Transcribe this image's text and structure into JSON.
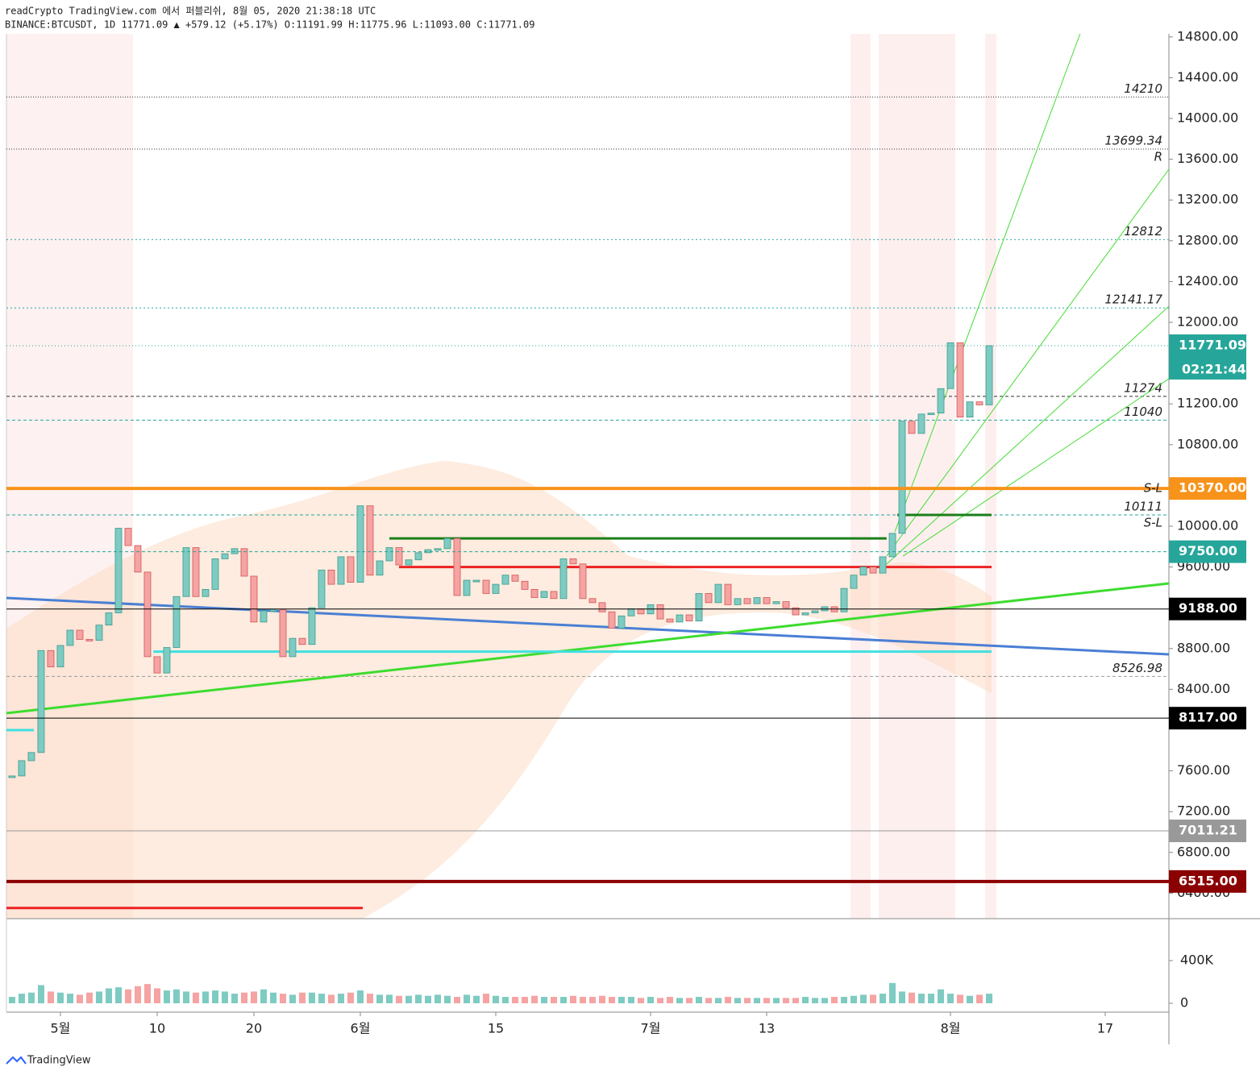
{
  "header": {
    "line1": "readCrypto TradingView.com 에서 퍼블리쉬, 8월 05, 2020 21:38:18 UTC",
    "line2": "BINANCE:BTCUSDT, 1D 11771.09 ▲ +579.12 (+5.17%) O:11191.99 H:11775.96 L:11093.00 C:11771.09"
  },
  "footer": "TradingView",
  "chart_data": {
    "type": "candlestick",
    "xlim": [
      -5.58,
      114.58
    ],
    "ylim": [
      6150,
      14830
    ],
    "xticks": [
      {
        "value": 0,
        "label": "5월"
      },
      10,
      20,
      {
        "value": 31,
        "label": "6월"
      },
      {
        "value": 45,
        "label": "15"
      },
      {
        "value": 61,
        "label": "7월"
      },
      {
        "value": 73,
        "label": "13"
      },
      {
        "value": 92,
        "label": "8월"
      },
      {
        "value": 108,
        "label": "17"
      }
    ],
    "yticks": [
      {
        "value": 14800,
        "label": "14800.00"
      },
      {
        "value": 14400,
        "label": "14400.00"
      },
      {
        "value": 14000,
        "label": "14000.00"
      },
      {
        "value": 13600,
        "label": "13600.00"
      },
      {
        "value": 13200,
        "label": "13200.00"
      },
      {
        "value": 12800,
        "label": "12800.00"
      },
      {
        "value": 12400,
        "label": "12400.00"
      },
      {
        "value": 12000,
        "label": "12000.00"
      },
      {
        "value": 11200,
        "label": "11200.00"
      },
      {
        "value": 10800,
        "label": "10800.00"
      },
      {
        "value": 10000,
        "label": "10000.00"
      },
      {
        "value": 9600,
        "label": "9600.00"
      },
      {
        "value": 8800,
        "label": "8800.00"
      },
      {
        "value": 8400,
        "label": "8400.00"
      },
      {
        "value": 7600,
        "label": "7600.00"
      },
      {
        "value": 7200,
        "label": "7200.00"
      },
      {
        "value": 6800,
        "label": "6800.00"
      },
      {
        "value": 6400,
        "label": "6400.00"
      }
    ],
    "up_color": "#7ecbc2",
    "down_color": "#f5a3a3",
    "x": [
      -5,
      -4,
      -3,
      -2,
      -1,
      0,
      1,
      2,
      3,
      4,
      5,
      6,
      7,
      8,
      9,
      10,
      11,
      12,
      13,
      14,
      15,
      16,
      17,
      18,
      19,
      20,
      21,
      22,
      23,
      24,
      25,
      26,
      27,
      28,
      29,
      30,
      31,
      32,
      33,
      34,
      35,
      36,
      37,
      38,
      39,
      40,
      41,
      42,
      43,
      44,
      45,
      46,
      47,
      48,
      49,
      50,
      51,
      52,
      53,
      54,
      55,
      56,
      57,
      58,
      59,
      60,
      61,
      62,
      63,
      64,
      65,
      66,
      67,
      68,
      69,
      70,
      71,
      72,
      73,
      74,
      75,
      76,
      77,
      78,
      79,
      80,
      81,
      82,
      83,
      84,
      85,
      86,
      87,
      88,
      89,
      90,
      91,
      92,
      93,
      94,
      95,
      96
    ],
    "close": [
      7550,
      7700,
      7780,
      8780,
      8620,
      8830,
      8980,
      8890,
      8880,
      9030,
      9150,
      9980,
      9810,
      9550,
      8720,
      8560,
      8810,
      9310,
      9790,
      9310,
      9380,
      9680,
      9730,
      9780,
      9510,
      9060,
      9170,
      9180,
      8720,
      8900,
      8840,
      9200,
      9570,
      9430,
      9700,
      9450,
      10200,
      9520,
      9660,
      9790,
      9620,
      9670,
      9740,
      9770,
      9780,
      9880,
      9320,
      9470,
      9470,
      9340,
      9430,
      9520,
      9460,
      9380,
      9300,
      9360,
      9290,
      9680,
      9630,
      9290,
      9250,
      9160,
      9000,
      9120,
      9190,
      9140,
      9230,
      9090,
      9060,
      9130,
      9070,
      9340,
      9250,
      9430,
      9230,
      9290,
      9240,
      9300,
      9240,
      9260,
      9200,
      9130,
      9150,
      9170,
      9210,
      9160,
      9390,
      9520,
      9600,
      9540,
      9700,
      9930,
      11030,
      10910,
      11100,
      11110,
      11350,
      11800,
      11070,
      11220,
      11190,
      11771.09
    ],
    "volume": [
      60000,
      90000,
      100000,
      170000,
      110000,
      100000,
      90000,
      80000,
      100000,
      110000,
      140000,
      150000,
      130000,
      160000,
      180000,
      140000,
      120000,
      130000,
      110000,
      100000,
      110000,
      120000,
      110000,
      90000,
      100000,
      110000,
      130000,
      100000,
      90000,
      80000,
      100000,
      100000,
      90000,
      80000,
      90000,
      100000,
      120000,
      90000,
      80000,
      80000,
      70000,
      70000,
      80000,
      70000,
      80000,
      70000,
      60000,
      80000,
      70000,
      90000,
      70000,
      60000,
      60000,
      60000,
      70000,
      60000,
      60000,
      60000,
      70000,
      60000,
      60000,
      70000,
      60000,
      60000,
      60000,
      50000,
      60000,
      50000,
      60000,
      50000,
      50000,
      60000,
      50000,
      50000,
      60000,
      50000,
      50000,
      50000,
      50000,
      50000,
      50000,
      50000,
      60000,
      50000,
      50000,
      60000,
      60000,
      70000,
      80000,
      80000,
      90000,
      190000,
      110000,
      100000,
      90000,
      90000,
      130000,
      90000,
      80000,
      70000,
      80000,
      90000
    ],
    "vlim": [
      0,
      732000
    ],
    "vticks": [
      {
        "value": 400000,
        "label": "400K"
      },
      0
    ],
    "levels": [
      {
        "value": 14210,
        "label": "14210",
        "color": "#333",
        "dash": "1 2"
      },
      {
        "value": 13699.34,
        "label": "13699.34",
        "note": "R",
        "color": "#333",
        "dash": "1 2"
      },
      {
        "value": 12812,
        "label": "12812",
        "color": "#26a69a",
        "dash": "2 3"
      },
      {
        "value": 12141.17,
        "label": "12141.17",
        "color": "#26a69a",
        "dash": "2 3"
      },
      {
        "value": 11274,
        "label": "11274",
        "color": "#333",
        "dash": "4 3"
      },
      {
        "value": 11040,
        "label": "11040",
        "color": "#26a69a",
        "dash": "4 3"
      },
      {
        "value": 10111,
        "label": "10111",
        "note": "S-L",
        "color": "#26a69a",
        "dash": "4 3"
      },
      {
        "value": 8526.98,
        "label": "8526.98",
        "color": "#999",
        "dash": "4 3"
      }
    ],
    "tags": [
      {
        "value": 10370,
        "label": "10370.00",
        "note": "S-L",
        "color": "#f7931a",
        "width": 4
      },
      {
        "value": 9750,
        "label": "9750.00",
        "color": "#26a69a",
        "width": 1,
        "dash": "4 3"
      },
      {
        "value": 9188,
        "label": "9188.00",
        "color": "#000",
        "width": 1
      },
      {
        "value": 8117,
        "label": "8117.00",
        "color": "#000",
        "width": 1
      },
      {
        "value": 7011.21,
        "label": "7011.21",
        "color": "#999",
        "width": 1
      },
      {
        "value": 6515,
        "label": "6515.00",
        "color": "#8b0000",
        "width": 4
      }
    ],
    "last": {
      "value": 11771.09,
      "label": "11771.09",
      "countdown": "02:21:44",
      "color": "#26a69a"
    },
    "lines": [
      {
        "x": [
          -5.58,
          114.58
        ],
        "y": [
          9296,
          8743
        ],
        "color": "#4a7fd4",
        "width": 3
      },
      {
        "x": [
          -5.58,
          114.58
        ],
        "y": [
          8166,
          9439
        ],
        "color": "#3ddc2e",
        "width": 3
      },
      {
        "x": [
          86.25,
          105.4
        ],
        "y": [
          9945,
          14830
        ],
        "color": "#44dd33",
        "width": 1
      },
      {
        "x": [
          85.4,
          114.58
        ],
        "y": [
          9707,
          13502
        ],
        "color": "#44dd33",
        "width": 1
      },
      {
        "x": [
          85.4,
          114.58
        ],
        "y": [
          9628,
          12158
        ],
        "color": "#44dd33",
        "width": 1
      },
      {
        "x": [
          87.1,
          114.58
        ],
        "y": [
          9707,
          11447
        ],
        "color": "#44dd33",
        "width": 1
      },
      {
        "x": [
          34,
          85.4
        ],
        "y": [
          9880,
          9880
        ],
        "color": "#1a7f1a",
        "width": 3
      },
      {
        "x": [
          9.6,
          96.25
        ],
        "y": [
          8770,
          8770
        ],
        "color": "#40e0e0",
        "width": 3
      },
      {
        "x": [
          35,
          96.25
        ],
        "y": [
          9600,
          9600
        ],
        "color": "#ee2222",
        "width": 3
      },
      {
        "x": [
          -5.58,
          31.25
        ],
        "y": [
          6255,
          6255
        ],
        "color": "#ee2222",
        "width": 3
      },
      {
        "x": [
          -5.58,
          -2.75
        ],
        "y": [
          8000,
          8000
        ],
        "color": "#40e0e0",
        "width": 3
      },
      {
        "x": [
          86.5,
          96.25
        ],
        "y": [
          10111,
          10111
        ],
        "color": "#1a7f1a",
        "width": 3
      }
    ]
  }
}
